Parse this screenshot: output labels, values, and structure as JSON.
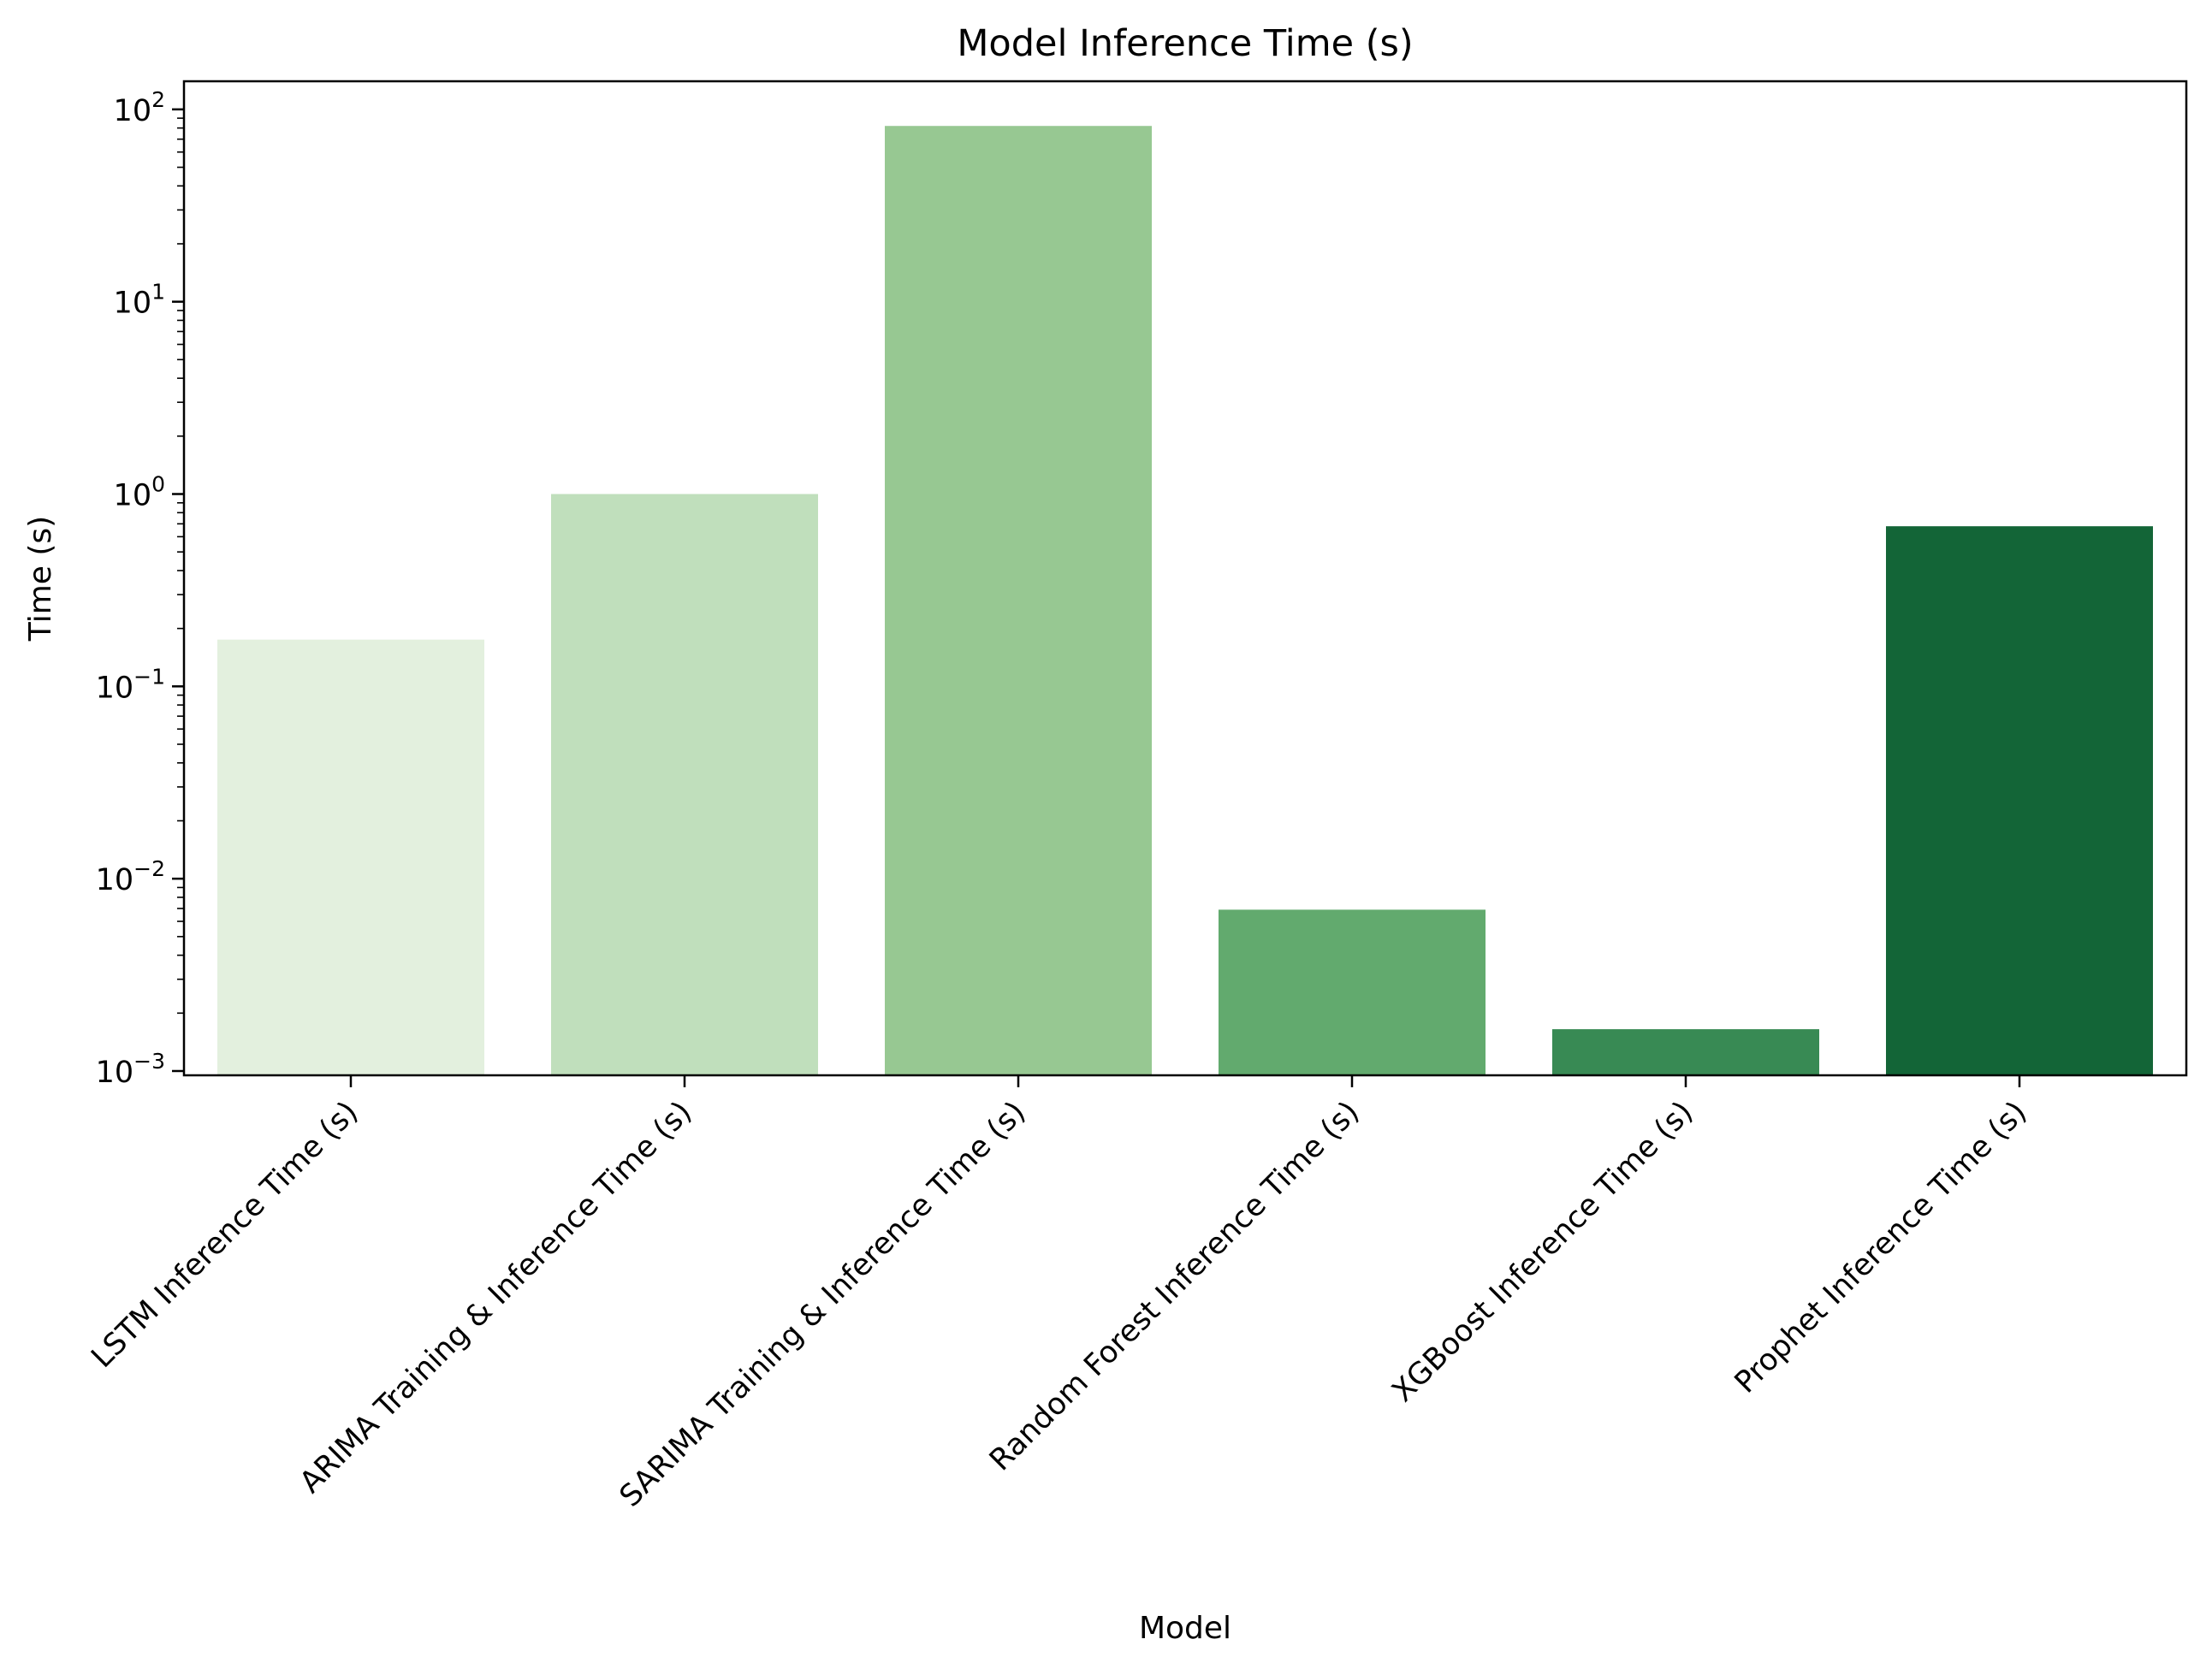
{
  "chart_data": {
    "type": "bar",
    "title": "Model Inference Time (s)",
    "xlabel": "Model",
    "ylabel": "Time (s)",
    "yscale": "log",
    "ylim": [
      0.00095,
      140
    ],
    "y_major_ticks": [
      {
        "value": 0.001,
        "base": "10",
        "exp": "−3"
      },
      {
        "value": 0.01,
        "base": "10",
        "exp": "−2"
      },
      {
        "value": 0.1,
        "base": "10",
        "exp": "−1"
      },
      {
        "value": 1,
        "base": "10",
        "exp": "0"
      },
      {
        "value": 10,
        "base": "10",
        "exp": "1"
      },
      {
        "value": 100,
        "base": "10",
        "exp": "2"
      }
    ],
    "grid": false,
    "legend": "none",
    "categories": [
      "LSTM Inference Time (s)",
      "ARIMA Training & Inference Time (s)",
      "SARIMA Training & Inference Time (s)",
      "Random Forest Inference Time (s)",
      "XGBoost Inference Time (s)",
      "Prophet Inference Time (s)"
    ],
    "values": [
      0.175,
      1.0,
      82.0,
      0.0069,
      0.00165,
      0.68
    ],
    "colors": [
      "#e3f0de",
      "#c0dfbc",
      "#97c892",
      "#62aa6e",
      "#388a54",
      "#136537"
    ]
  }
}
